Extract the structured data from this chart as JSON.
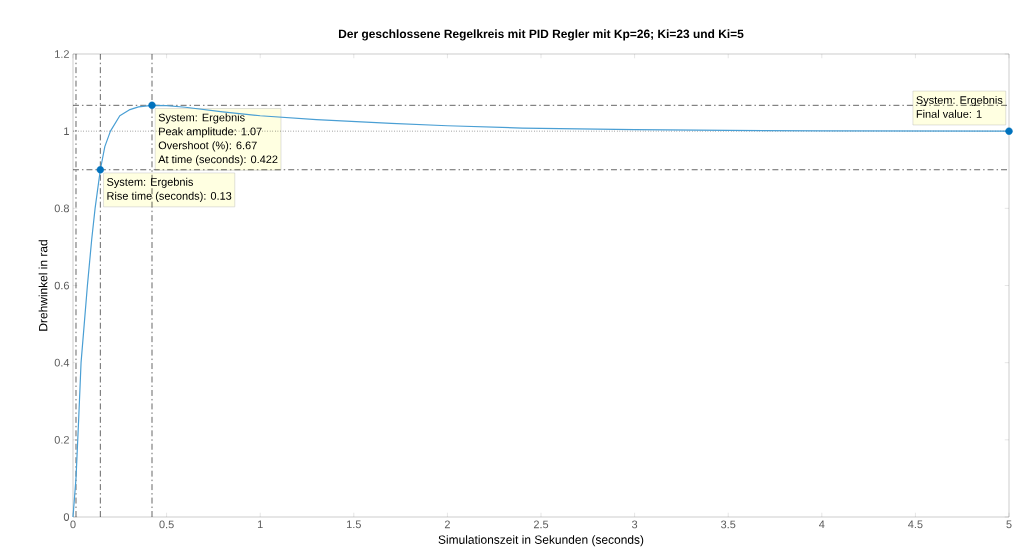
{
  "chart_data": {
    "type": "line",
    "title": "Der geschlossene Regelkreis mit PID Regler mit Kp=26; Ki=23 und Ki=5",
    "xlabel": "Simulationszeit in Sekunden (seconds)",
    "ylabel": "Drehwinkel in rad",
    "series": [
      {
        "color": "#4a9fd4",
        "marker": "none",
        "line_style": "solid",
        "x": [
          0,
          0.016,
          0.03,
          0.043,
          0.06,
          0.077,
          0.1,
          0.118,
          0.146,
          0.17,
          0.2,
          0.25,
          0.3,
          0.35,
          0.422,
          0.5,
          0.6,
          0.8,
          1.0,
          1.3,
          1.7,
          2.0,
          2.4,
          3.0,
          3.5,
          4.0,
          5
        ],
        "values": [
          0,
          0.1,
          0.25,
          0.4,
          0.5,
          0.6,
          0.72,
          0.8,
          0.9,
          0.96,
          1.0,
          1.04,
          1.055,
          1.063,
          1.067,
          1.066,
          1.062,
          1.05,
          1.04,
          1.03,
          1.02,
          1.014,
          1.008,
          1.004,
          1.002,
          1.001,
          1
        ]
      },
      {
        "type": "scatter",
        "color": "#0072bd",
        "marker": "circle",
        "x": [
          0.146,
          0.422,
          5
        ],
        "values": [
          0.9,
          1.067,
          1
        ]
      }
    ],
    "xlim": [
      0,
      5
    ],
    "ylim": [
      0,
      1.2
    ],
    "xticks": [
      0,
      0.5,
      1,
      1.5,
      2,
      2.5,
      3,
      3.5,
      4,
      4.5,
      5
    ],
    "yticks": [
      0,
      0.2,
      0.4,
      0.6,
      0.8,
      1,
      1.2
    ],
    "grid": false,
    "ref_lines": [
      {
        "axis": "y",
        "value": 1,
        "color": "#000000",
        "line_style": "dotted"
      },
      {
        "axis": "x",
        "value": 0.016,
        "color": "#000000",
        "line_style": "dashed"
      },
      {
        "axis": "x",
        "value": 0.146,
        "color": "#000000",
        "line_style": "dashed"
      },
      {
        "axis": "x",
        "value": 0.422,
        "color": "#000000",
        "line_style": "dashed"
      },
      {
        "axis": "y",
        "value": 0.9,
        "color": "#000000",
        "line_style": "dashed"
      },
      {
        "axis": "y",
        "value": 1.067,
        "color": "#000000",
        "line_style": "dashed"
      }
    ],
    "annotations": [
      {
        "text": "System: Ergebnis",
        "x": 0.146,
        "y": 0.9
      },
      "Rise time (seconds): 0.13",
      {
        "text": "System: Ergebnis",
        "x": 0.422,
        "y": 1.067
      },
      "Peak amplitude: 1.07",
      "Overshoot (%): 6.67",
      "At time (seconds): 0.422",
      {
        "text": "System: Ergebnis",
        "x": 5,
        "y": 1
      },
      "Final value: 1"
    ]
  }
}
